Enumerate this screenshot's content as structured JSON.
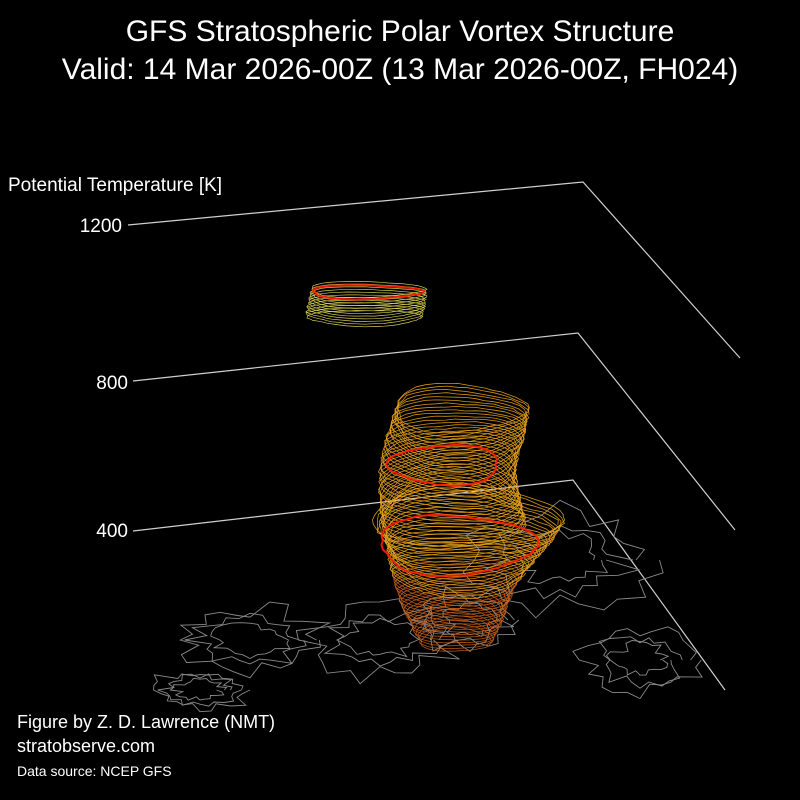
{
  "header": {
    "title": "GFS Stratospheric Polar Vortex Structure",
    "subtitle": "Valid: 14 Mar 2026-00Z  (13 Mar 2026-00Z, FH024)"
  },
  "chart_data": {
    "type": "3d-isosurface",
    "z_axis_label": "Potential Temperature [K]",
    "z_ticks": [
      "1200",
      "800",
      "400"
    ],
    "z_range": [
      350,
      1250
    ],
    "colors": {
      "background": "#000000",
      "axes": "#cfcfcf",
      "coastline": "#8a8a8a",
      "vortex_edge": "#ff1a0a",
      "layers_low": "#c4601a",
      "layers_mid": "#e8a31c",
      "layers_high": "#e8e05a"
    },
    "vortex_edge_levels_K": [
      475,
      700,
      1100
    ]
  },
  "footer": {
    "credit": "Figure by Z. D. Lawrence (NMT)",
    "website": "stratobserve.com",
    "source": "Data source: NCEP GFS"
  }
}
